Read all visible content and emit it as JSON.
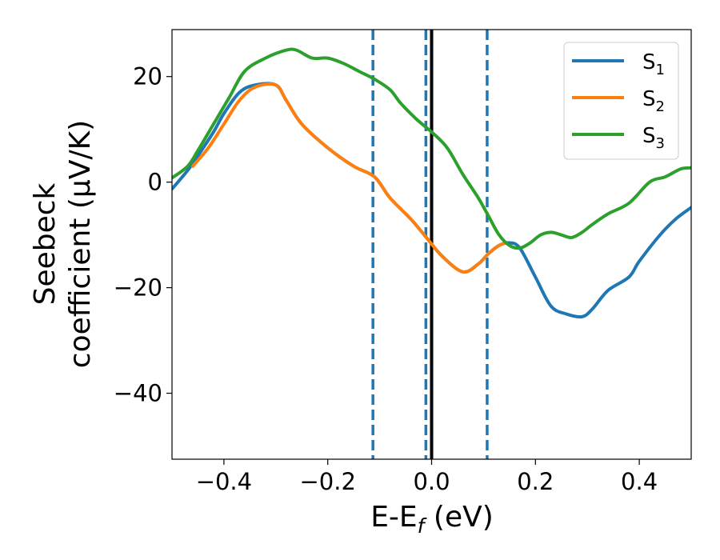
{
  "chart_data": {
    "type": "line",
    "xlabel": "E-E",
    "xlabel_sub": "f",
    "xlabel_unit": " (eV)",
    "ylabel_line1": "Seebeck",
    "ylabel_line2": "coefficient  (μV/K)",
    "xlim": [
      -0.5,
      0.5
    ],
    "ylim": [
      -52.5,
      28.9
    ],
    "xticks": [
      -0.4,
      -0.2,
      0.0,
      0.2,
      0.4
    ],
    "xtick_labels": [
      "−0.4",
      "−0.2",
      "0.0",
      "0.2",
      "0.4"
    ],
    "yticks": [
      20,
      0,
      -20,
      -40
    ],
    "ytick_labels": [
      "20",
      "0",
      "−20",
      "−40"
    ],
    "grid": false,
    "legend_position": "top-right",
    "vlines": [
      {
        "x": -0.113,
        "style": "dashed",
        "color": "#1f77b4"
      },
      {
        "x": -0.011,
        "style": "dashed",
        "color": "#1f77b4"
      },
      {
        "x": 0.0,
        "style": "solid",
        "color": "#000000"
      },
      {
        "x": 0.107,
        "style": "dashed",
        "color": "#1f77b4"
      }
    ],
    "series": [
      {
        "name": "S",
        "sub": "1",
        "color": "#1f77b4",
        "x": [
          -0.5,
          -0.47,
          -0.45,
          -0.42,
          -0.4,
          -0.37,
          -0.34,
          -0.3,
          -0.28,
          -0.25,
          -0.2,
          -0.15,
          -0.11,
          -0.08,
          -0.04,
          -0.01,
          0.02,
          0.06,
          0.09,
          0.11,
          0.13,
          0.15,
          0.17,
          0.2,
          0.23,
          0.26,
          0.29,
          0.31,
          0.34,
          0.38,
          0.4,
          0.44,
          0.47,
          0.5
        ],
        "y": [
          -1.3,
          2.2,
          5.0,
          9.5,
          13.0,
          17.0,
          18.4,
          18.4,
          15.5,
          11.0,
          6.5,
          3.0,
          1.0,
          -3.0,
          -7.0,
          -10.5,
          -14.0,
          -17.0,
          -15.5,
          -13.5,
          -12.0,
          -11.5,
          -12.5,
          -18.0,
          -23.5,
          -25.0,
          -25.5,
          -24.0,
          -20.5,
          -18.0,
          -15.0,
          -10.0,
          -7.0,
          -4.8
        ]
      },
      {
        "name": "S",
        "sub": "2",
        "color": "#ff7f0e",
        "x": [
          -0.46,
          -0.43,
          -0.4,
          -0.37,
          -0.34,
          -0.3,
          -0.28,
          -0.25,
          -0.2,
          -0.15,
          -0.11,
          -0.08,
          -0.04,
          -0.01,
          0.02,
          0.06,
          0.09,
          0.11,
          0.13,
          0.14
        ],
        "y": [
          3.0,
          6.5,
          11.0,
          15.5,
          18.0,
          18.4,
          15.5,
          11.0,
          6.5,
          3.0,
          1.0,
          -3.0,
          -7.0,
          -10.5,
          -14.0,
          -17.0,
          -15.5,
          -13.5,
          -12.0,
          -11.6
        ]
      },
      {
        "name": "S",
        "sub": "3",
        "color": "#2ca02c",
        "x": [
          -0.5,
          -0.47,
          -0.45,
          -0.42,
          -0.39,
          -0.36,
          -0.32,
          -0.28,
          -0.26,
          -0.23,
          -0.2,
          -0.17,
          -0.14,
          -0.11,
          -0.08,
          -0.06,
          -0.03,
          0.0,
          0.03,
          0.06,
          0.09,
          0.11,
          0.13,
          0.15,
          0.17,
          0.19,
          0.21,
          0.23,
          0.25,
          0.27,
          0.29,
          0.31,
          0.34,
          0.38,
          0.42,
          0.45,
          0.48,
          0.5
        ],
        "y": [
          0.8,
          3.0,
          6.0,
          11.0,
          16.0,
          21.0,
          23.5,
          25.0,
          25.0,
          23.5,
          23.5,
          22.5,
          21.0,
          19.5,
          17.5,
          15.0,
          12.0,
          9.5,
          6.5,
          1.5,
          -3.0,
          -6.5,
          -10.0,
          -12.0,
          -12.5,
          -11.5,
          -10.0,
          -9.5,
          -10.0,
          -10.5,
          -9.5,
          -8.0,
          -6.0,
          -4.0,
          0.0,
          1.0,
          2.5,
          2.7
        ]
      }
    ]
  }
}
